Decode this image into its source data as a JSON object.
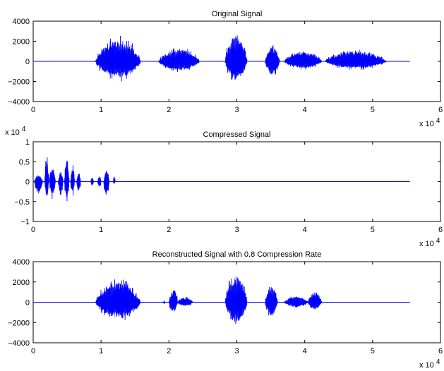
{
  "chart_data": [
    {
      "type": "line",
      "title": "Original Signal",
      "xlabel": "",
      "ylabel": "",
      "xlim": [
        0,
        60000
      ],
      "ylim": [
        -4000,
        4000
      ],
      "xtick_labels": [
        "0",
        "1",
        "2",
        "3",
        "4",
        "5",
        "6"
      ],
      "ytick_labels": [
        "−4000",
        "−2000",
        "0",
        "2000",
        "4000"
      ],
      "x_multiplier": "x 10",
      "x_multiplier_exp": "4",
      "y_multiplier": "",
      "y_multiplier_exp": "",
      "line_color": "#0000ff",
      "grid": false,
      "legend": "none",
      "signal_length": 55500,
      "bursts": [
        {
          "x_start": 9200,
          "x_end": 15800,
          "peak_amplitude": 2600,
          "trough_amplitude": -2100
        },
        {
          "x_start": 18500,
          "x_end": 24500,
          "peak_amplitude": 1500,
          "trough_amplitude": -1200
        },
        {
          "x_start": 28300,
          "x_end": 31500,
          "peak_amplitude": 3500,
          "trough_amplitude": -2500
        },
        {
          "x_start": 34200,
          "x_end": 36300,
          "peak_amplitude": 2000,
          "trough_amplitude": -1800
        },
        {
          "x_start": 37000,
          "x_end": 42500,
          "peak_amplitude": 1200,
          "trough_amplitude": -900
        },
        {
          "x_start": 43000,
          "x_end": 52000,
          "peak_amplitude": 1300,
          "trough_amplitude": -900
        }
      ]
    },
    {
      "type": "line",
      "title": "Compressed Signal",
      "xlabel": "",
      "ylabel": "",
      "xlim": [
        0,
        60000
      ],
      "ylim": [
        -10000,
        10000
      ],
      "xtick_labels": [
        "0",
        "1",
        "2",
        "3",
        "4",
        "5",
        "6"
      ],
      "ytick_labels": [
        "−1",
        "−0.5",
        "0",
        "0.5",
        "1"
      ],
      "x_multiplier": "x 10",
      "x_multiplier_exp": "4",
      "y_multiplier": "x 10",
      "y_multiplier_exp": "4",
      "line_color": "#0000ff",
      "grid": false,
      "legend": "none",
      "signal_length": 55500,
      "bursts": [
        {
          "x_start": 200,
          "x_end": 1400,
          "peak_amplitude": 2200,
          "trough_amplitude": -3500
        },
        {
          "x_start": 1700,
          "x_end": 2300,
          "peak_amplitude": 7800,
          "trough_amplitude": -6000
        },
        {
          "x_start": 2400,
          "x_end": 3300,
          "peak_amplitude": 4000,
          "trough_amplitude": -4500
        },
        {
          "x_start": 3700,
          "x_end": 4400,
          "peak_amplitude": 3000,
          "trough_amplitude": -4000
        },
        {
          "x_start": 4600,
          "x_end": 5300,
          "peak_amplitude": 7200,
          "trough_amplitude": -6000
        },
        {
          "x_start": 5500,
          "x_end": 6100,
          "peak_amplitude": 4500,
          "trough_amplitude": -4000
        },
        {
          "x_start": 6400,
          "x_end": 7000,
          "peak_amplitude": 2800,
          "trough_amplitude": -3000
        },
        {
          "x_start": 8500,
          "x_end": 8900,
          "peak_amplitude": 1500,
          "trough_amplitude": -1500
        },
        {
          "x_start": 9500,
          "x_end": 10000,
          "peak_amplitude": 2200,
          "trough_amplitude": -2000
        },
        {
          "x_start": 10400,
          "x_end": 11200,
          "peak_amplitude": 3500,
          "trough_amplitude": -4500
        },
        {
          "x_start": 11800,
          "x_end": 12100,
          "peak_amplitude": 2000,
          "trough_amplitude": -800
        }
      ]
    },
    {
      "type": "line",
      "title": "Reconstructed Signal with 0.8 Compression Rate",
      "xlabel": "",
      "ylabel": "",
      "xlim": [
        0,
        60000
      ],
      "ylim": [
        -4000,
        4000
      ],
      "xtick_labels": [
        "0",
        "1",
        "2",
        "3",
        "4",
        "5",
        "6"
      ],
      "ytick_labels": [
        "−4000",
        "−2000",
        "0",
        "2000",
        "4000"
      ],
      "x_multiplier": "x 10",
      "x_multiplier_exp": "4",
      "y_multiplier": "",
      "y_multiplier_exp": "",
      "line_color": "#0000ff",
      "grid": false,
      "legend": "none",
      "signal_length": 55500,
      "bursts": [
        {
          "x_start": 9200,
          "x_end": 15800,
          "peak_amplitude": 2500,
          "trough_amplitude": -2000
        },
        {
          "x_start": 19200,
          "x_end": 19400,
          "peak_amplitude": 200,
          "trough_amplitude": -300
        },
        {
          "x_start": 20000,
          "x_end": 21300,
          "peak_amplitude": 1500,
          "trough_amplitude": -1200
        },
        {
          "x_start": 21300,
          "x_end": 23500,
          "peak_amplitude": 600,
          "trough_amplitude": -500
        },
        {
          "x_start": 28300,
          "x_end": 31500,
          "peak_amplitude": 3300,
          "trough_amplitude": -2500
        },
        {
          "x_start": 34200,
          "x_end": 36000,
          "peak_amplitude": 2000,
          "trough_amplitude": -1700
        },
        {
          "x_start": 37000,
          "x_end": 40500,
          "peak_amplitude": 700,
          "trough_amplitude": -600
        },
        {
          "x_start": 40500,
          "x_end": 42500,
          "peak_amplitude": 1300,
          "trough_amplitude": -900
        }
      ]
    }
  ]
}
